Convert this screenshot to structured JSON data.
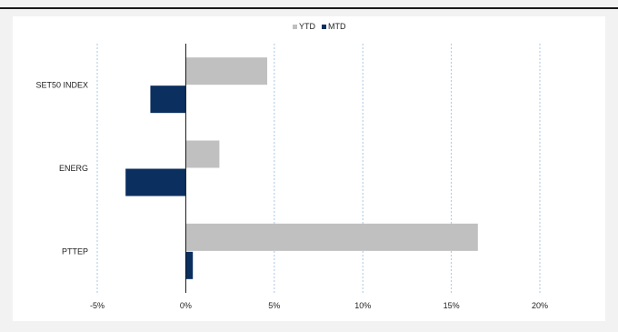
{
  "chart_data": {
    "type": "bar",
    "orientation": "horizontal",
    "categories": [
      "SET50 INDEX",
      "ENERG",
      "PTTEP"
    ],
    "series": [
      {
        "name": "YTD",
        "values": [
          4.6,
          1.9,
          16.5
        ]
      },
      {
        "name": "MTD",
        "values": [
          -2.0,
          -3.4,
          0.4
        ]
      }
    ],
    "xlim": [
      -5,
      20
    ],
    "xticks": [
      -5,
      0,
      5,
      10,
      15,
      20
    ],
    "tick_labels": [
      "-5%",
      "0%",
      "5%",
      "10%",
      "15%",
      "20%"
    ],
    "legend": {
      "placement": "top-center",
      "entries": [
        "YTD",
        "MTD"
      ]
    },
    "grid": "vertical-dashed",
    "colors": {
      "YTD": "#c0c0c0",
      "MTD": "#0b2f5f",
      "grid": "#a9c7e3"
    }
  }
}
